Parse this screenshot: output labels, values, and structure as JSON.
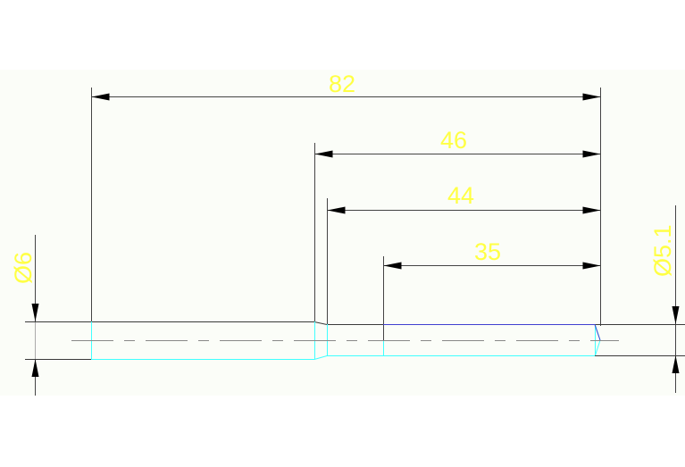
{
  "drawing": {
    "colors": {
      "background": "#fbfdf8",
      "outline": "#3a3a3a",
      "hidden_edges": "#40ffff",
      "chamfer_edge": "#4040d0",
      "dimension_text": "#ffff44",
      "dimension_lines": "#444444"
    },
    "dimensions": {
      "overall_length": "82",
      "length_46": "46",
      "length_44": "44",
      "length_35": "35",
      "diameter_left": "Ø6",
      "diameter_right": "Ø5.1"
    }
  }
}
